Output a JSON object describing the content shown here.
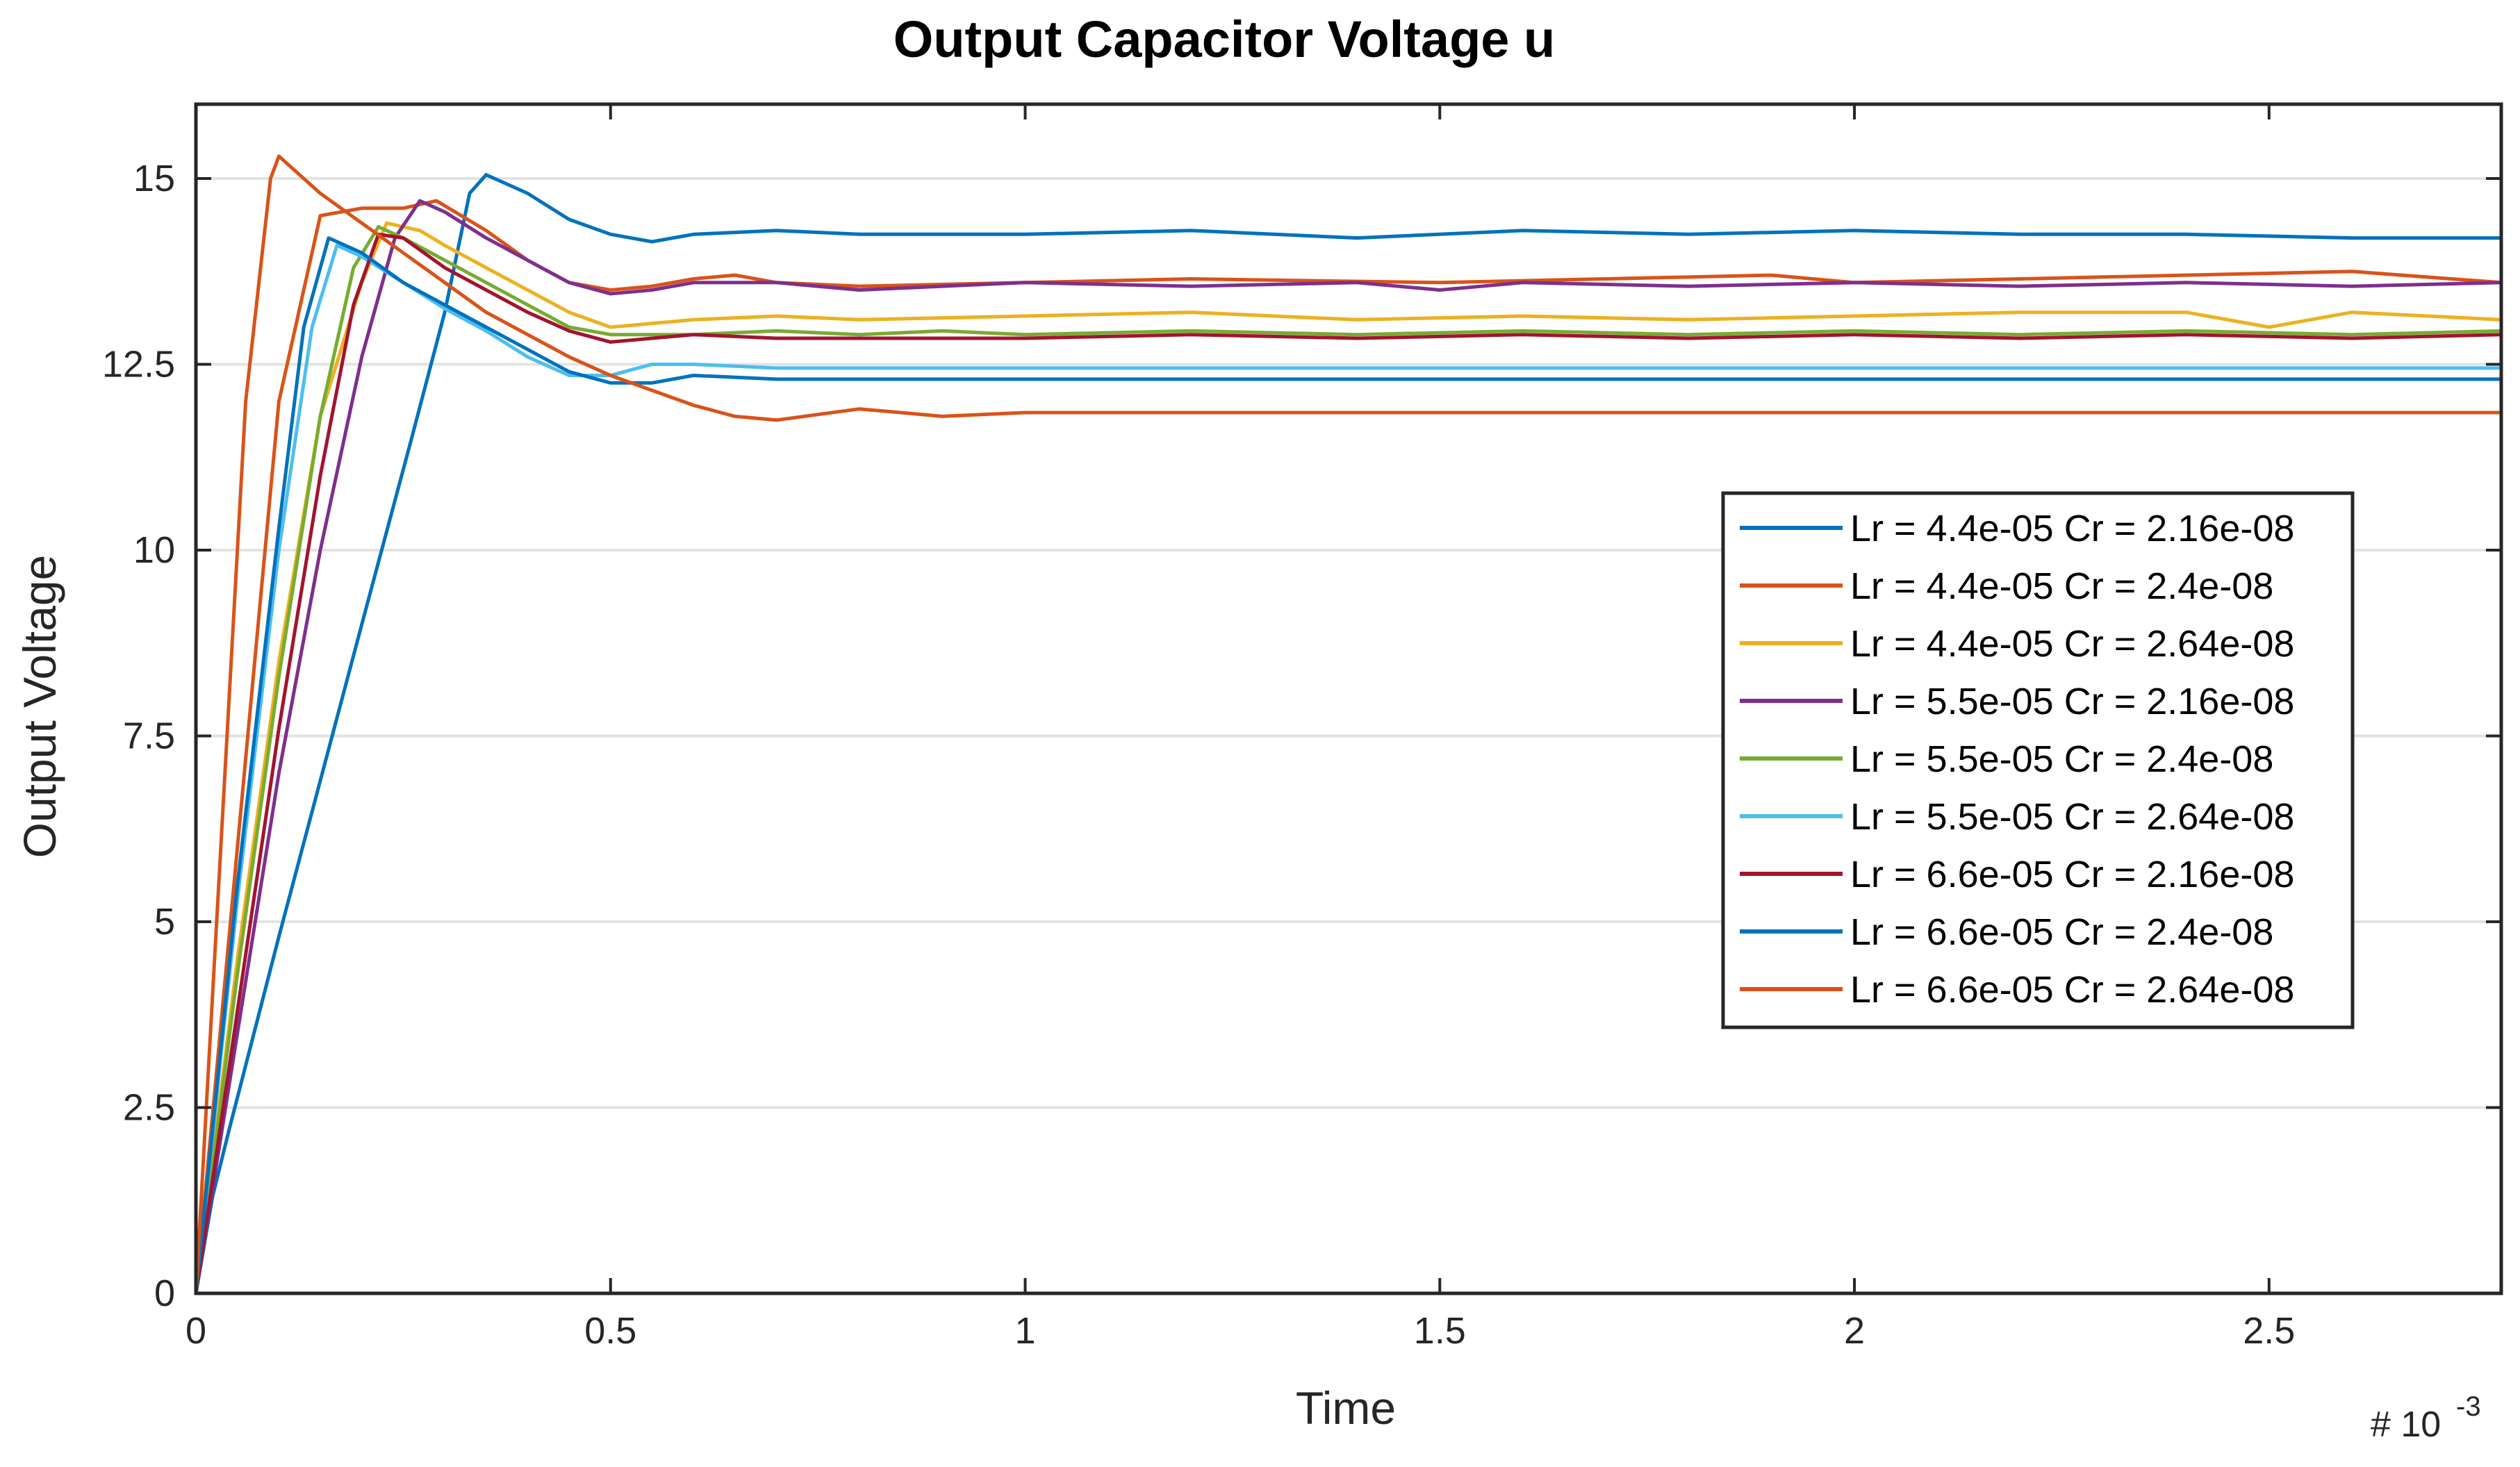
{
  "chart_data": {
    "type": "line",
    "title": "Output Capacitor Voltage u",
    "xlabel": "Time",
    "ylabel": "Output Voltage",
    "x_exponent_label": "# 10",
    "x_exponent_power": "-3",
    "xlim": [
      0,
      2.78
    ],
    "ylim": [
      0,
      16
    ],
    "x_ticks": [
      0,
      0.5,
      1,
      1.5,
      2,
      2.5
    ],
    "x_tick_labels": [
      "0",
      "0.5",
      "1",
      "1.5",
      "2",
      "2.5"
    ],
    "y_ticks": [
      0,
      2.5,
      5,
      7.5,
      10,
      12.5,
      15
    ],
    "y_tick_labels": [
      "0",
      "2.5",
      "5",
      "7.5",
      "10",
      "12.5",
      "15"
    ],
    "grid": "horizontal",
    "legend_position": "right",
    "series": [
      {
        "name": "Lr = 4.4e-05 Cr = 2.16e-08",
        "color": "#0072BD",
        "points": [
          [
            0,
            0
          ],
          [
            0.02,
            1.3
          ],
          [
            0.04,
            2.2
          ],
          [
            0.1,
            4.8
          ],
          [
            0.2,
            9.0
          ],
          [
            0.26,
            11.5
          ],
          [
            0.3,
            13.2
          ],
          [
            0.33,
            14.8
          ],
          [
            0.35,
            15.05
          ],
          [
            0.4,
            14.8
          ],
          [
            0.45,
            14.45
          ],
          [
            0.5,
            14.25
          ],
          [
            0.55,
            14.15
          ],
          [
            0.6,
            14.25
          ],
          [
            0.7,
            14.3
          ],
          [
            0.8,
            14.25
          ],
          [
            1.0,
            14.25
          ],
          [
            1.2,
            14.3
          ],
          [
            1.4,
            14.2
          ],
          [
            1.6,
            14.3
          ],
          [
            1.8,
            14.25
          ],
          [
            2.0,
            14.3
          ],
          [
            2.2,
            14.25
          ],
          [
            2.4,
            14.25
          ],
          [
            2.6,
            14.2
          ],
          [
            2.78,
            14.2
          ]
        ]
      },
      {
        "name": "Lr = 4.4e-05 Cr = 2.4e-08",
        "color": "#D95319",
        "points": [
          [
            0,
            0
          ],
          [
            0.05,
            6
          ],
          [
            0.1,
            12
          ],
          [
            0.15,
            14.5
          ],
          [
            0.2,
            14.6
          ],
          [
            0.25,
            14.6
          ],
          [
            0.29,
            14.7
          ],
          [
            0.35,
            14.3
          ],
          [
            0.4,
            13.9
          ],
          [
            0.45,
            13.6
          ],
          [
            0.5,
            13.5
          ],
          [
            0.55,
            13.55
          ],
          [
            0.6,
            13.65
          ],
          [
            0.65,
            13.7
          ],
          [
            0.7,
            13.6
          ],
          [
            0.8,
            13.55
          ],
          [
            1.0,
            13.6
          ],
          [
            1.2,
            13.65
          ],
          [
            1.5,
            13.6
          ],
          [
            1.7,
            13.65
          ],
          [
            1.9,
            13.7
          ],
          [
            2.0,
            13.6
          ],
          [
            2.2,
            13.65
          ],
          [
            2.4,
            13.7
          ],
          [
            2.6,
            13.75
          ],
          [
            2.78,
            13.6
          ]
        ]
      },
      {
        "name": "Lr = 4.4e-05 Cr = 2.64e-08",
        "color": "#EDB120",
        "points": [
          [
            0,
            0
          ],
          [
            0.05,
            4.5
          ],
          [
            0.1,
            8.5
          ],
          [
            0.15,
            11.8
          ],
          [
            0.2,
            13.6
          ],
          [
            0.23,
            14.4
          ],
          [
            0.27,
            14.3
          ],
          [
            0.3,
            14.1
          ],
          [
            0.35,
            13.8
          ],
          [
            0.4,
            13.5
          ],
          [
            0.45,
            13.2
          ],
          [
            0.5,
            13.0
          ],
          [
            0.55,
            13.05
          ],
          [
            0.6,
            13.1
          ],
          [
            0.7,
            13.15
          ],
          [
            0.8,
            13.1
          ],
          [
            1.0,
            13.15
          ],
          [
            1.2,
            13.2
          ],
          [
            1.4,
            13.1
          ],
          [
            1.6,
            13.15
          ],
          [
            1.8,
            13.1
          ],
          [
            2.0,
            13.15
          ],
          [
            2.2,
            13.2
          ],
          [
            2.4,
            13.2
          ],
          [
            2.5,
            13.0
          ],
          [
            2.6,
            13.2
          ],
          [
            2.78,
            13.1
          ]
        ]
      },
      {
        "name": "Lr = 5.5e-05 Cr = 2.16e-08",
        "color": "#7E2F8E",
        "points": [
          [
            0,
            0
          ],
          [
            0.05,
            3.5
          ],
          [
            0.1,
            7.0
          ],
          [
            0.15,
            10.0
          ],
          [
            0.2,
            12.6
          ],
          [
            0.24,
            14.2
          ],
          [
            0.27,
            14.7
          ],
          [
            0.3,
            14.55
          ],
          [
            0.35,
            14.2
          ],
          [
            0.4,
            13.9
          ],
          [
            0.45,
            13.6
          ],
          [
            0.5,
            13.45
          ],
          [
            0.55,
            13.5
          ],
          [
            0.6,
            13.6
          ],
          [
            0.7,
            13.6
          ],
          [
            0.8,
            13.5
          ],
          [
            0.9,
            13.55
          ],
          [
            1.0,
            13.6
          ],
          [
            1.2,
            13.55
          ],
          [
            1.4,
            13.6
          ],
          [
            1.5,
            13.5
          ],
          [
            1.6,
            13.6
          ],
          [
            1.8,
            13.55
          ],
          [
            2.0,
            13.6
          ],
          [
            2.2,
            13.55
          ],
          [
            2.4,
            13.6
          ],
          [
            2.6,
            13.55
          ],
          [
            2.78,
            13.6
          ]
        ]
      },
      {
        "name": "Lr = 5.5e-05 Cr = 2.4e-08",
        "color": "#77AC30",
        "points": [
          [
            0,
            0
          ],
          [
            0.05,
            4.3
          ],
          [
            0.1,
            8.3
          ],
          [
            0.15,
            11.8
          ],
          [
            0.19,
            13.8
          ],
          [
            0.22,
            14.35
          ],
          [
            0.25,
            14.2
          ],
          [
            0.3,
            13.9
          ],
          [
            0.35,
            13.6
          ],
          [
            0.4,
            13.3
          ],
          [
            0.45,
            13.0
          ],
          [
            0.5,
            12.9
          ],
          [
            0.6,
            12.9
          ],
          [
            0.7,
            12.95
          ],
          [
            0.8,
            12.9
          ],
          [
            0.9,
            12.95
          ],
          [
            1.0,
            12.9
          ],
          [
            1.2,
            12.95
          ],
          [
            1.4,
            12.9
          ],
          [
            1.6,
            12.95
          ],
          [
            1.8,
            12.9
          ],
          [
            2.0,
            12.95
          ],
          [
            2.2,
            12.9
          ],
          [
            2.4,
            12.95
          ],
          [
            2.6,
            12.9
          ],
          [
            2.78,
            12.95
          ]
        ]
      },
      {
        "name": "Lr = 5.5e-05 Cr = 2.64e-08",
        "color": "#4DBEEE",
        "points": [
          [
            0,
            0
          ],
          [
            0.05,
            5.3
          ],
          [
            0.1,
            10.0
          ],
          [
            0.14,
            13.0
          ],
          [
            0.17,
            14.1
          ],
          [
            0.2,
            13.95
          ],
          [
            0.25,
            13.6
          ],
          [
            0.3,
            13.25
          ],
          [
            0.35,
            12.95
          ],
          [
            0.4,
            12.6
          ],
          [
            0.45,
            12.35
          ],
          [
            0.5,
            12.35
          ],
          [
            0.55,
            12.5
          ],
          [
            0.6,
            12.5
          ],
          [
            0.7,
            12.45
          ],
          [
            0.8,
            12.45
          ],
          [
            1.0,
            12.45
          ],
          [
            1.2,
            12.45
          ],
          [
            1.4,
            12.45
          ],
          [
            1.6,
            12.45
          ],
          [
            1.8,
            12.45
          ],
          [
            2.0,
            12.45
          ],
          [
            2.2,
            12.45
          ],
          [
            2.4,
            12.45
          ],
          [
            2.6,
            12.45
          ],
          [
            2.78,
            12.45
          ]
        ]
      },
      {
        "name": "Lr = 6.6e-05 Cr = 2.16e-08",
        "color": "#A2142F",
        "points": [
          [
            0,
            0
          ],
          [
            0.05,
            3.8
          ],
          [
            0.1,
            7.6
          ],
          [
            0.15,
            11.0
          ],
          [
            0.19,
            13.3
          ],
          [
            0.22,
            14.25
          ],
          [
            0.25,
            14.2
          ],
          [
            0.3,
            13.8
          ],
          [
            0.35,
            13.5
          ],
          [
            0.4,
            13.2
          ],
          [
            0.45,
            12.95
          ],
          [
            0.5,
            12.8
          ],
          [
            0.55,
            12.85
          ],
          [
            0.6,
            12.9
          ],
          [
            0.7,
            12.85
          ],
          [
            0.8,
            12.85
          ],
          [
            1.0,
            12.85
          ],
          [
            1.2,
            12.9
          ],
          [
            1.4,
            12.85
          ],
          [
            1.6,
            12.9
          ],
          [
            1.8,
            12.85
          ],
          [
            2.0,
            12.9
          ],
          [
            2.2,
            12.85
          ],
          [
            2.4,
            12.9
          ],
          [
            2.6,
            12.85
          ],
          [
            2.78,
            12.9
          ]
        ]
      },
      {
        "name": "Lr = 6.6e-05 Cr = 2.4e-08",
        "color": "#0072BD",
        "points": [
          [
            0,
            0
          ],
          [
            0.05,
            5.5
          ],
          [
            0.1,
            10.3
          ],
          [
            0.13,
            13.0
          ],
          [
            0.16,
            14.2
          ],
          [
            0.2,
            14.0
          ],
          [
            0.25,
            13.6
          ],
          [
            0.3,
            13.3
          ],
          [
            0.35,
            13.0
          ],
          [
            0.4,
            12.7
          ],
          [
            0.45,
            12.4
          ],
          [
            0.5,
            12.25
          ],
          [
            0.55,
            12.25
          ],
          [
            0.6,
            12.35
          ],
          [
            0.7,
            12.3
          ],
          [
            0.8,
            12.3
          ],
          [
            1.0,
            12.3
          ],
          [
            1.2,
            12.3
          ],
          [
            1.4,
            12.3
          ],
          [
            1.6,
            12.3
          ],
          [
            1.8,
            12.3
          ],
          [
            2.0,
            12.3
          ],
          [
            2.2,
            12.3
          ],
          [
            2.4,
            12.3
          ],
          [
            2.6,
            12.3
          ],
          [
            2.78,
            12.3
          ]
        ]
      },
      {
        "name": "Lr = 6.6e-05 Cr = 2.64e-08",
        "color": "#D95319",
        "points": [
          [
            0,
            0
          ],
          [
            0.03,
            6.0
          ],
          [
            0.06,
            12.0
          ],
          [
            0.09,
            15.0
          ],
          [
            0.1,
            15.3
          ],
          [
            0.15,
            14.8
          ],
          [
            0.2,
            14.4
          ],
          [
            0.25,
            14.0
          ],
          [
            0.3,
            13.6
          ],
          [
            0.35,
            13.2
          ],
          [
            0.4,
            12.9
          ],
          [
            0.45,
            12.6
          ],
          [
            0.5,
            12.35
          ],
          [
            0.55,
            12.15
          ],
          [
            0.6,
            11.95
          ],
          [
            0.65,
            11.8
          ],
          [
            0.7,
            11.75
          ],
          [
            0.8,
            11.9
          ],
          [
            0.9,
            11.8
          ],
          [
            1.0,
            11.85
          ],
          [
            1.2,
            11.85
          ],
          [
            1.4,
            11.85
          ],
          [
            1.6,
            11.85
          ],
          [
            1.8,
            11.85
          ],
          [
            2.0,
            11.85
          ],
          [
            2.2,
            11.85
          ],
          [
            2.4,
            11.85
          ],
          [
            2.6,
            11.85
          ],
          [
            2.78,
            11.85
          ]
        ]
      }
    ]
  }
}
